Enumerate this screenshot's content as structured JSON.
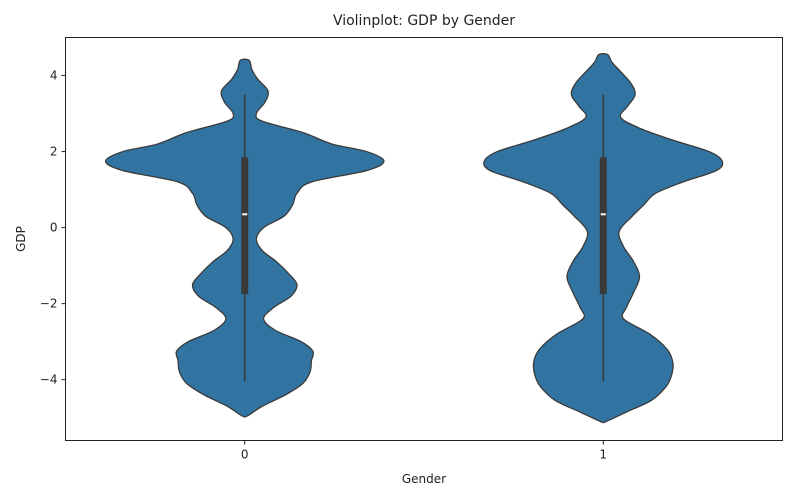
{
  "chart_data": {
    "type": "violin",
    "title": "Violinplot: GDP by Gender",
    "xlabel": "Gender",
    "ylabel": "GDP",
    "categories": [
      "0",
      "1"
    ],
    "ylim": [
      -5.6,
      5.0
    ],
    "yticks": [
      -4,
      -2,
      0,
      2,
      4
    ],
    "grid": false,
    "color": "#3274a1",
    "edge_color": "#3a3a3a",
    "violins": [
      {
        "category": "0",
        "ymin": -4.95,
        "ymax": 4.4,
        "q1": -1.75,
        "median": 0.35,
        "q3": 1.85,
        "whisker_low": -4.05,
        "whisker_high": 3.5,
        "density": [
          [
            -4.95,
            0.02
          ],
          [
            -4.7,
            0.12
          ],
          [
            -4.4,
            0.28
          ],
          [
            -4.1,
            0.4
          ],
          [
            -3.8,
            0.45
          ],
          [
            -3.5,
            0.46
          ],
          [
            -3.25,
            0.47
          ],
          [
            -3.0,
            0.39
          ],
          [
            -2.7,
            0.21
          ],
          [
            -2.4,
            0.13
          ],
          [
            -2.1,
            0.2
          ],
          [
            -1.8,
            0.32
          ],
          [
            -1.5,
            0.36
          ],
          [
            -1.2,
            0.3
          ],
          [
            -0.9,
            0.22
          ],
          [
            -0.6,
            0.12
          ],
          [
            -0.3,
            0.08
          ],
          [
            0.0,
            0.13
          ],
          [
            0.3,
            0.27
          ],
          [
            0.6,
            0.33
          ],
          [
            0.9,
            0.36
          ],
          [
            1.2,
            0.46
          ],
          [
            1.5,
            0.84
          ],
          [
            1.75,
            0.96
          ],
          [
            2.0,
            0.84
          ],
          [
            2.2,
            0.6
          ],
          [
            2.5,
            0.4
          ],
          [
            2.8,
            0.12
          ],
          [
            3.0,
            0.08
          ],
          [
            3.3,
            0.14
          ],
          [
            3.6,
            0.16
          ],
          [
            3.9,
            0.09
          ],
          [
            4.15,
            0.05
          ],
          [
            4.4,
            0.03
          ]
        ]
      },
      {
        "category": "1",
        "ymin": -5.1,
        "ymax": 4.55,
        "q1": -1.75,
        "median": 0.35,
        "q3": 1.85,
        "whisker_low": -4.05,
        "whisker_high": 3.5,
        "density": [
          [
            -5.1,
            0.02
          ],
          [
            -4.85,
            0.16
          ],
          [
            -4.55,
            0.33
          ],
          [
            -4.2,
            0.43
          ],
          [
            -3.9,
            0.47
          ],
          [
            -3.55,
            0.48
          ],
          [
            -3.2,
            0.44
          ],
          [
            -2.8,
            0.32
          ],
          [
            -2.4,
            0.14
          ],
          [
            -2.1,
            0.16
          ],
          [
            -1.7,
            0.21
          ],
          [
            -1.3,
            0.25
          ],
          [
            -0.9,
            0.21
          ],
          [
            -0.5,
            0.14
          ],
          [
            -0.1,
            0.11
          ],
          [
            0.3,
            0.2
          ],
          [
            0.6,
            0.28
          ],
          [
            0.9,
            0.36
          ],
          [
            1.2,
            0.55
          ],
          [
            1.5,
            0.78
          ],
          [
            1.75,
            0.82
          ],
          [
            2.0,
            0.73
          ],
          [
            2.3,
            0.48
          ],
          [
            2.6,
            0.26
          ],
          [
            2.9,
            0.12
          ],
          [
            3.2,
            0.17
          ],
          [
            3.5,
            0.22
          ],
          [
            3.8,
            0.19
          ],
          [
            4.1,
            0.12
          ],
          [
            4.35,
            0.06
          ],
          [
            4.55,
            0.03
          ]
        ]
      }
    ]
  }
}
